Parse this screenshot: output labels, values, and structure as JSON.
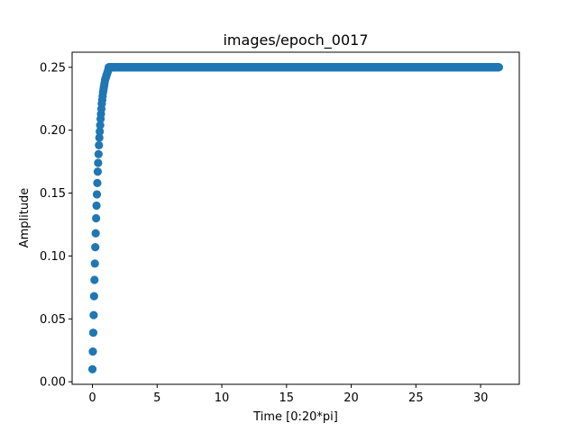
{
  "chart_data": {
    "type": "scatter",
    "title": "images/epoch_0017",
    "xlabel": "Time [0:20*pi]",
    "ylabel": "Amplitude",
    "xlim": [
      -1.57,
      32.99
    ],
    "ylim": [
      -0.002,
      0.262
    ],
    "xticks": [
      "0",
      "5",
      "10",
      "15",
      "20",
      "25",
      "30"
    ],
    "yticks": [
      "0.00",
      "0.05",
      "0.10",
      "0.15",
      "0.20",
      "0.25"
    ],
    "xtick_values": [
      0,
      5,
      10,
      15,
      20,
      25,
      30
    ],
    "ytick_values": [
      0.0,
      0.05,
      0.1,
      0.15,
      0.2,
      0.25
    ],
    "grid": false,
    "legend": "none",
    "color": "#1f77b4",
    "series": [
      {
        "x_range": [
          0.0,
          31.4159
        ],
        "n_points": 1000,
        "rise_points_y": [
          0.01,
          0.024,
          0.039,
          0.053,
          0.068,
          0.081,
          0.094,
          0.107,
          0.118,
          0.13,
          0.14,
          0.149,
          0.158,
          0.167,
          0.174,
          0.181,
          0.188,
          0.194,
          0.199,
          0.204,
          0.209,
          0.213,
          0.217,
          0.221,
          0.224,
          0.227,
          0.23,
          0.232,
          0.234,
          0.236,
          0.238,
          0.24,
          0.241,
          0.242,
          0.243,
          0.244,
          0.245,
          0.246,
          0.247,
          0.248
        ],
        "plateau_value": 0.25
      }
    ]
  }
}
